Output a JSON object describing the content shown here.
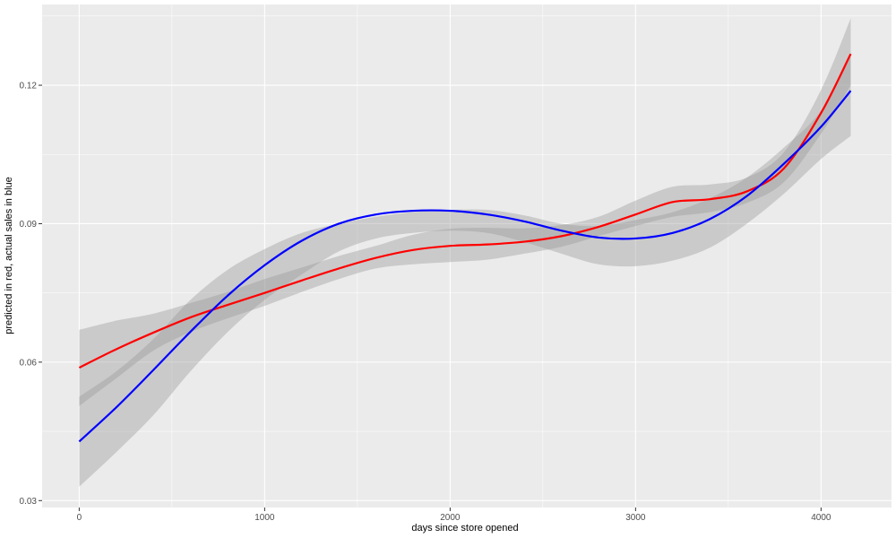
{
  "chart_data": {
    "type": "line",
    "title": "",
    "xlabel": "days since store opened",
    "ylabel": "predicted in red, actual sales in blue",
    "xlim": [
      -200,
      4380
    ],
    "ylim": [
      0.0285,
      0.1375
    ],
    "x_ticks": [
      0,
      1000,
      2000,
      3000,
      4000
    ],
    "x_tick_labels": [
      "0",
      "1000",
      "2000",
      "3000",
      "4000"
    ],
    "y_ticks": [
      0.03,
      0.06,
      0.09,
      0.12
    ],
    "y_tick_labels": [
      "0.03",
      "0.06",
      "0.09",
      "0.12"
    ],
    "grid": true,
    "legend": "none",
    "background": "#EBEBEB",
    "series": [
      {
        "color": "#FF0000",
        "x": [
          0,
          200,
          400,
          600,
          800,
          1000,
          1200,
          1400,
          1600,
          1800,
          2000,
          2200,
          2400,
          2600,
          2800,
          3000,
          3200,
          3400,
          3600,
          3800,
          4000,
          4160
        ],
        "y": [
          0.0588,
          0.0628,
          0.0664,
          0.0697,
          0.0724,
          0.075,
          0.0777,
          0.0803,
          0.0826,
          0.0843,
          0.0852,
          0.0855,
          0.0861,
          0.0873,
          0.0893,
          0.092,
          0.0947,
          0.0953,
          0.097,
          0.102,
          0.114,
          0.1268
        ],
        "band_lower": [
          0.0505,
          0.0565,
          0.0625,
          0.0665,
          0.0695,
          0.0722,
          0.0752,
          0.078,
          0.0803,
          0.0812,
          0.0817,
          0.0822,
          0.0835,
          0.085,
          0.0873,
          0.0895,
          0.0915,
          0.0925,
          0.0945,
          0.099,
          0.1095,
          0.12
        ],
        "band_upper": [
          0.067,
          0.069,
          0.0705,
          0.0728,
          0.0752,
          0.078,
          0.0805,
          0.083,
          0.0852,
          0.0876,
          0.0889,
          0.0891,
          0.089,
          0.0897,
          0.0915,
          0.095,
          0.098,
          0.0985,
          0.1,
          0.1055,
          0.119,
          0.1345
        ]
      },
      {
        "color": "#0000FF",
        "x": [
          0,
          200,
          400,
          600,
          800,
          1000,
          1200,
          1400,
          1600,
          1800,
          2000,
          2200,
          2400,
          2600,
          2800,
          3000,
          3200,
          3400,
          3600,
          3800,
          4000,
          4160
        ],
        "y": [
          0.0428,
          0.0502,
          0.0583,
          0.0666,
          0.0744,
          0.081,
          0.0863,
          0.09,
          0.092,
          0.0928,
          0.0928,
          0.092,
          0.0905,
          0.0885,
          0.087,
          0.0868,
          0.088,
          0.091,
          0.096,
          0.103,
          0.111,
          0.1188
        ],
        "band_lower": [
          0.033,
          0.0405,
          0.0485,
          0.058,
          0.0665,
          0.0735,
          0.079,
          0.084,
          0.0868,
          0.088,
          0.0885,
          0.088,
          0.086,
          0.0835,
          0.0812,
          0.0808,
          0.082,
          0.0848,
          0.09,
          0.0965,
          0.104,
          0.109
        ],
        "band_upper": [
          0.0525,
          0.058,
          0.065,
          0.0735,
          0.08,
          0.0845,
          0.088,
          0.09,
          0.0915,
          0.0925,
          0.093,
          0.093,
          0.0918,
          0.09,
          0.0895,
          0.0908,
          0.0925,
          0.0955,
          0.1,
          0.1065,
          0.1145,
          0.127
        ]
      }
    ]
  }
}
